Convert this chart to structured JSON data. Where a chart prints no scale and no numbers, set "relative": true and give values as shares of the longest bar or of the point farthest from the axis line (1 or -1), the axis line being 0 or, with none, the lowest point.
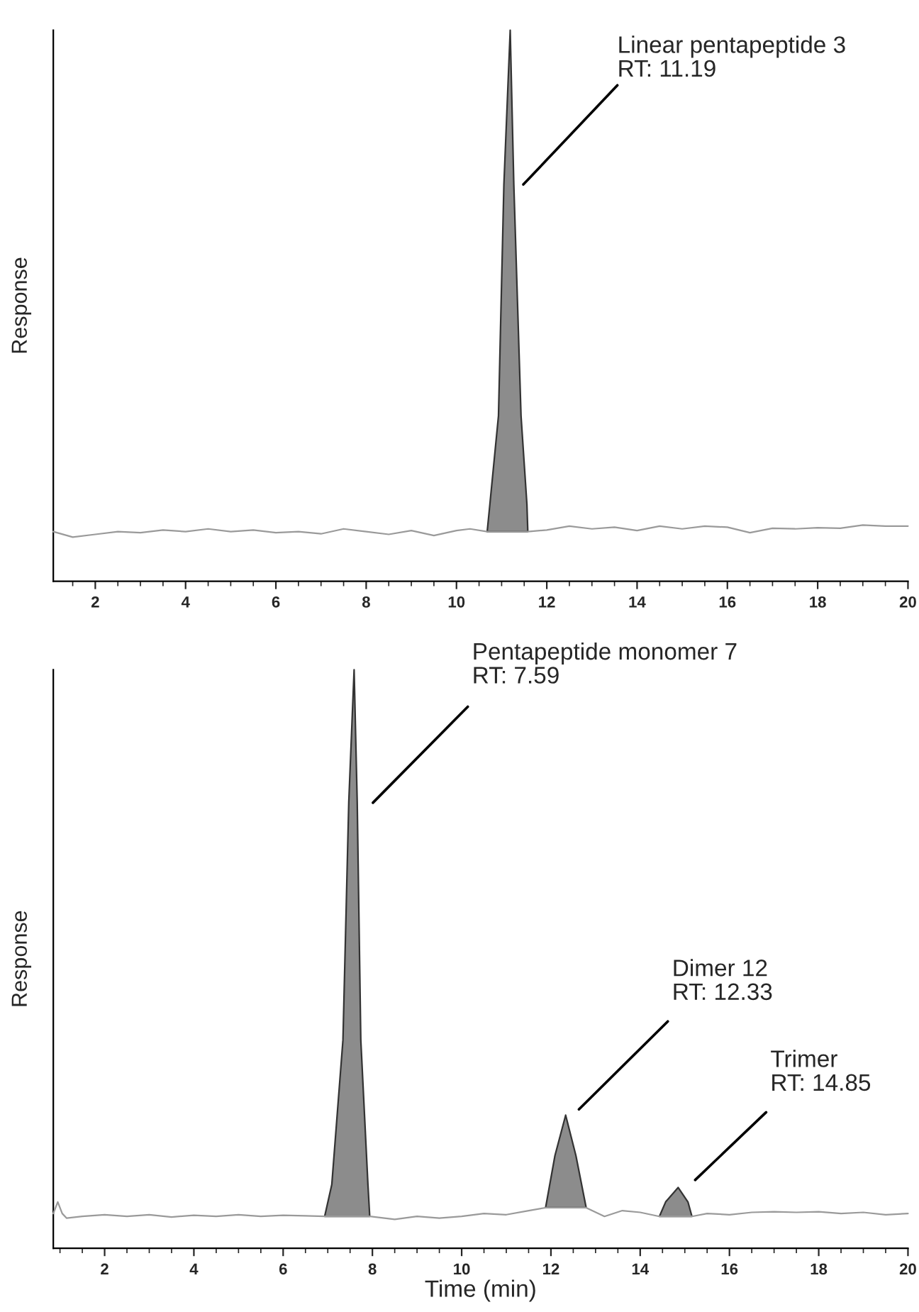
{
  "chart_data": [
    {
      "type": "line",
      "ylabel": "Response",
      "relative": true,
      "tick_labels": "x",
      "xlim": [
        1.07,
        20
      ],
      "xticks": [
        2,
        4,
        6,
        8,
        10,
        12,
        14,
        16,
        18,
        20
      ],
      "series": [
        {
          "color": "#9a9a9a",
          "x": [
            1.07,
            1.5,
            2,
            2.5,
            3,
            3.5,
            4,
            4.5,
            5,
            5.5,
            6,
            6.5,
            7,
            7.5,
            8,
            8.5,
            9,
            9.5,
            10,
            10.3,
            10.68,
            11.58,
            12,
            12.5,
            13,
            13.5,
            14,
            14.5,
            15,
            15.5,
            16,
            16.5,
            17,
            17.5,
            18,
            18.5,
            19,
            19.5,
            20
          ],
          "values": [
            0.09,
            0.08,
            0.085,
            0.09,
            0.088,
            0.093,
            0.09,
            0.095,
            0.09,
            0.093,
            0.088,
            0.09,
            0.086,
            0.095,
            0.09,
            0.085,
            0.092,
            0.083,
            0.092,
            0.095,
            0.09,
            0.09,
            0.093,
            0.1,
            0.095,
            0.098,
            0.092,
            0.1,
            0.095,
            0.1,
            0.098,
            0.088,
            0.096,
            0.095,
            0.097,
            0.096,
            0.102,
            0.1,
            0.1
          ]
        },
        {
          "type": "area",
          "color": "#8c8c8c",
          "x": [
            10.68,
            10.74,
            10.93,
            11.05,
            11.19,
            11.27,
            11.43,
            11.56,
            11.58
          ],
          "values": [
            0.09,
            0.14,
            0.3,
            0.72,
            1.0,
            0.72,
            0.3,
            0.14,
            0.09
          ]
        }
      ],
      "annotations": [
        "Linear pentapeptide 3\nRT: 11.19"
      ]
    },
    {
      "type": "line",
      "xlabel": "Time (min)",
      "ylabel": "Response",
      "relative": true,
      "tick_labels": "x",
      "xlim": [
        0.85,
        20
      ],
      "xticks": [
        2,
        4,
        6,
        8,
        10,
        12,
        14,
        16,
        18,
        20
      ],
      "series": [
        {
          "color": "#9a9a9a",
          "x": [
            0.85,
            0.95,
            1.05,
            1.15,
            1.5,
            2,
            2.5,
            3,
            3.5,
            4,
            4.5,
            5,
            5.5,
            6,
            6.5,
            6.93,
            7.94,
            8.5,
            9,
            9.5,
            10,
            10.5,
            11,
            11.5,
            11.88,
            12.79,
            13.2,
            13.6,
            14,
            14.43,
            15.16,
            15.5,
            16,
            16.5,
            17,
            17.5,
            18,
            18.5,
            19,
            19.5,
            20
          ],
          "values": [
            0.06,
            0.08,
            0.06,
            0.052,
            0.055,
            0.058,
            0.055,
            0.058,
            0.054,
            0.057,
            0.055,
            0.058,
            0.055,
            0.057,
            0.056,
            0.055,
            0.055,
            0.05,
            0.055,
            0.052,
            0.055,
            0.06,
            0.058,
            0.065,
            0.07,
            0.07,
            0.055,
            0.065,
            0.062,
            0.055,
            0.055,
            0.06,
            0.058,
            0.062,
            0.063,
            0.062,
            0.063,
            0.06,
            0.062,
            0.058,
            0.06
          ]
        },
        {
          "type": "area",
          "color": "#8c8c8c",
          "x": [
            6.93,
            7.09,
            7.34,
            7.47,
            7.59,
            7.66,
            7.74,
            7.9,
            7.94
          ],
          "values": [
            0.055,
            0.11,
            0.36,
            0.77,
            1.0,
            0.77,
            0.36,
            0.11,
            0.055
          ]
        },
        {
          "type": "area",
          "color": "#8c8c8c",
          "x": [
            11.88,
            12.09,
            12.33,
            12.56,
            12.79
          ],
          "values": [
            0.07,
            0.16,
            0.23,
            0.16,
            0.07
          ]
        },
        {
          "type": "area",
          "color": "#8c8c8c",
          "x": [
            14.43,
            14.57,
            14.85,
            15.07,
            15.16
          ],
          "values": [
            0.055,
            0.08,
            0.105,
            0.08,
            0.055
          ]
        }
      ],
      "annotations": [
        "Pentapeptide monomer 7\nRT: 7.59",
        "Dimer 12\nRT: 12.33",
        "Trimer\nRT: 14.85"
      ]
    }
  ]
}
